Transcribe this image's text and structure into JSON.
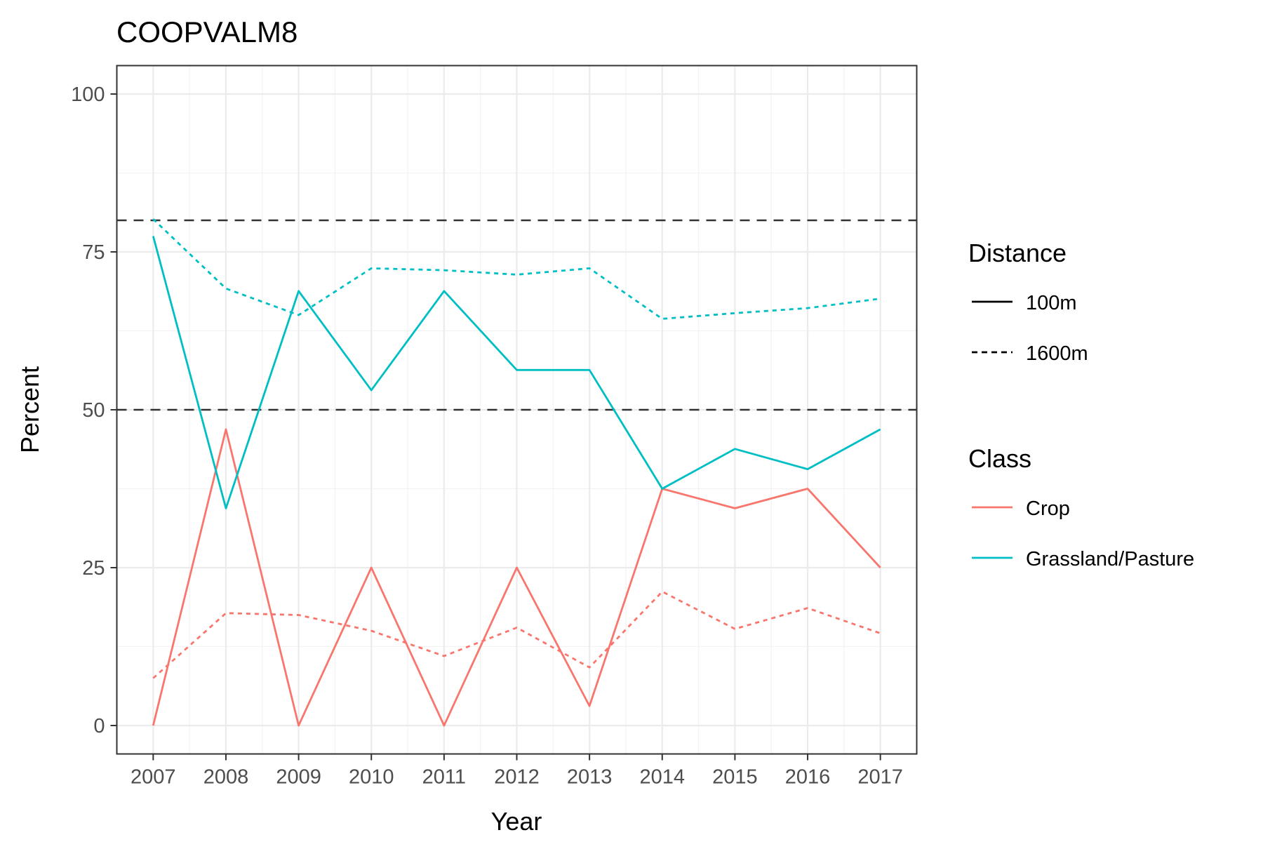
{
  "chart_data": {
    "type": "line",
    "title": "COOPVALM8",
    "xlabel": "Year",
    "ylabel": "Percent",
    "x": [
      2007,
      2008,
      2009,
      2010,
      2011,
      2012,
      2013,
      2014,
      2015,
      2016,
      2017
    ],
    "xlim": [
      2006.5,
      2017.5
    ],
    "ylim": [
      -4.5,
      104.5
    ],
    "yticks": [
      0,
      25,
      50,
      75,
      100
    ],
    "grid": true,
    "reference_lines": [
      80,
      50
    ],
    "series": [
      {
        "class": "Crop",
        "distance": "100m",
        "color": "#F8766D",
        "dash": "solid",
        "values": [
          0,
          46.9,
          0,
          25,
          0,
          25,
          3.1,
          37.5,
          34.4,
          37.5,
          25
        ]
      },
      {
        "class": "Crop",
        "distance": "1600m",
        "color": "#F8766D",
        "dash": "dotted",
        "values": [
          7.5,
          17.8,
          17.5,
          15,
          11,
          15.5,
          9.2,
          21.2,
          15.3,
          18.6,
          14.6
        ]
      },
      {
        "class": "Grassland/Pasture",
        "distance": "100m",
        "color": "#00BFC4",
        "dash": "solid",
        "values": [
          77.5,
          34.4,
          68.8,
          53.1,
          68.8,
          56.3,
          56.3,
          37.5,
          43.8,
          40.6,
          46.9
        ]
      },
      {
        "class": "Grassland/Pasture",
        "distance": "1600m",
        "color": "#00BFC4",
        "dash": "dotted",
        "values": [
          80.2,
          69.2,
          65,
          72.4,
          72.1,
          71.4,
          72.4,
          64.4,
          65.3,
          66.1,
          67.6
        ]
      }
    ],
    "legend": {
      "placement": "right",
      "distance": {
        "title": "Distance",
        "items": [
          {
            "label": "100m",
            "dash": "solid"
          },
          {
            "label": "1600m",
            "dash": "dotted"
          }
        ]
      },
      "class": {
        "title": "Class",
        "items": [
          {
            "label": "Crop",
            "color": "#F8766D"
          },
          {
            "label": "Grassland/Pasture",
            "color": "#00BFC4"
          }
        ]
      }
    }
  }
}
